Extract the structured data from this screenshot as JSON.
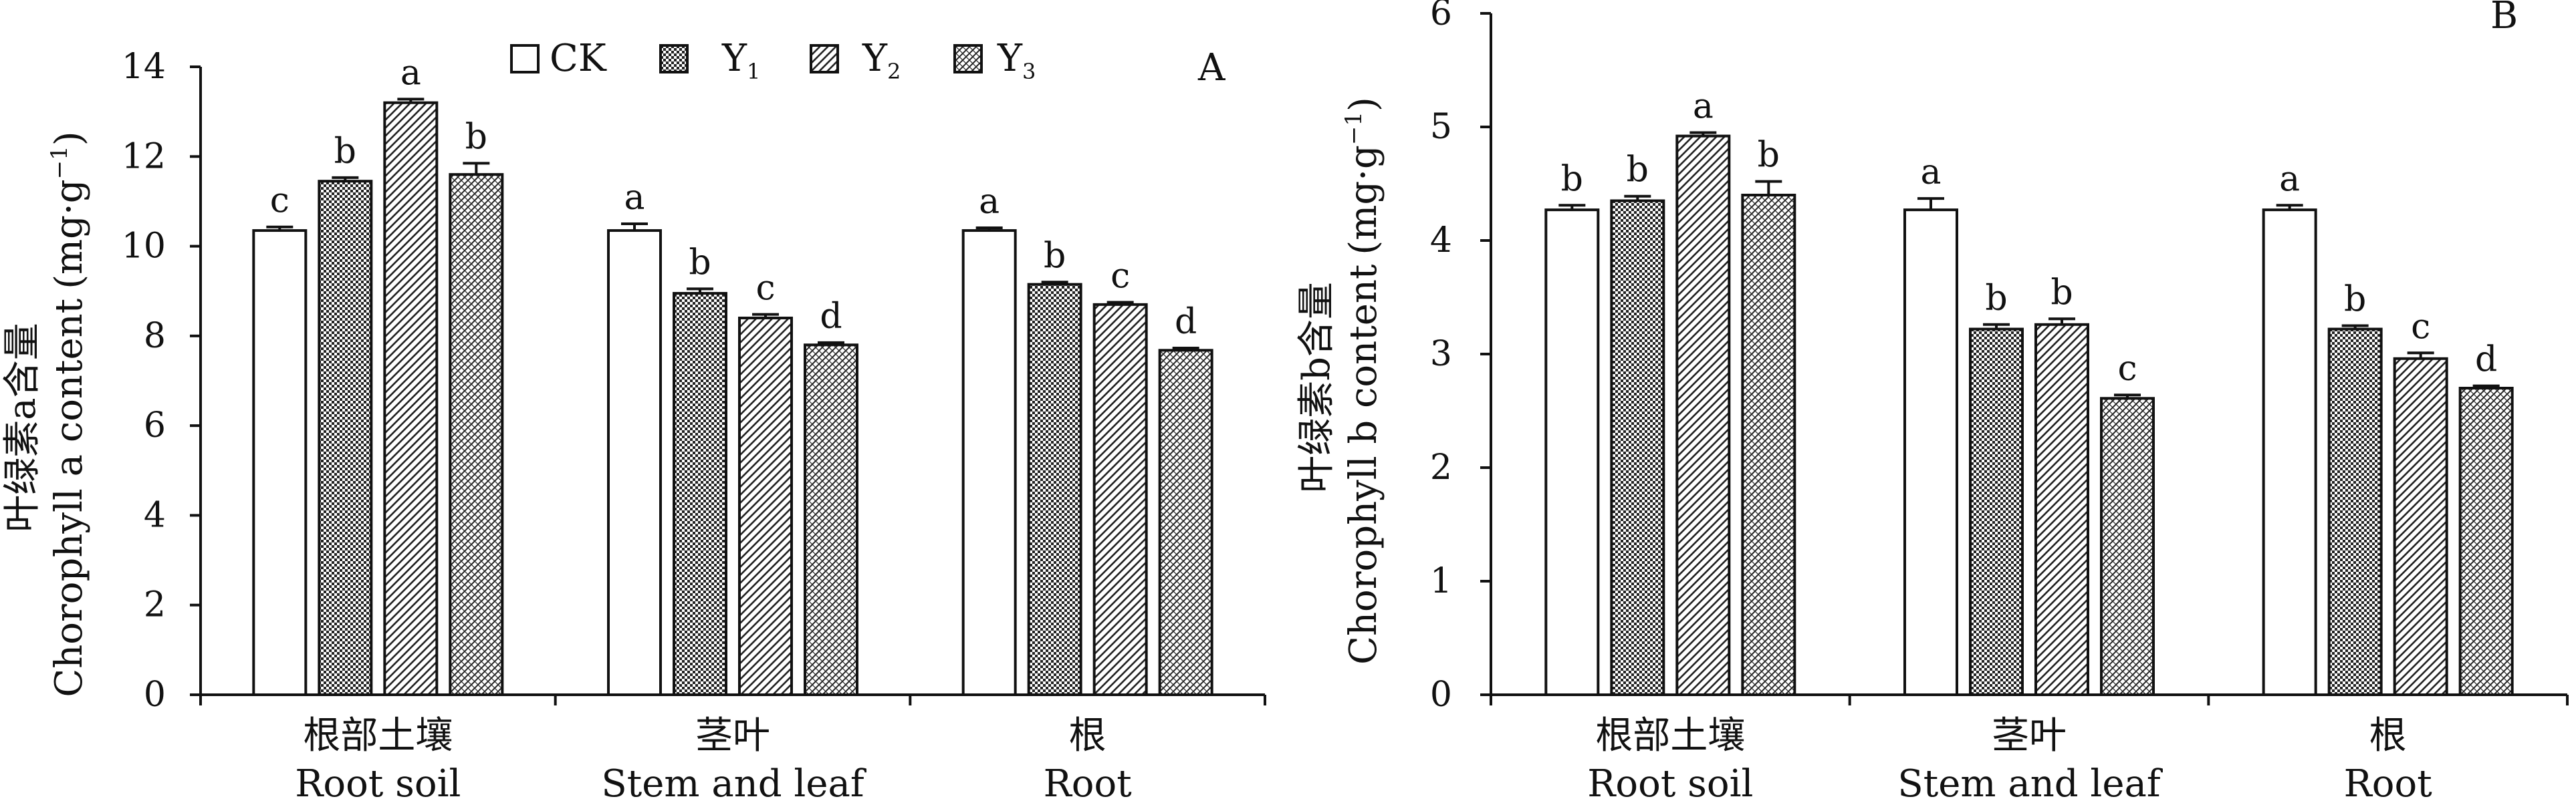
{
  "legend": [
    {
      "name": "CK",
      "sub": "",
      "pattern": "none"
    },
    {
      "name": "Y",
      "sub": "1",
      "pattern": "dense"
    },
    {
      "name": "Y",
      "sub": "2",
      "pattern": "diag"
    },
    {
      "name": "Y",
      "sub": "3",
      "pattern": "diagx"
    }
  ],
  "chart_data": [
    {
      "type": "bar",
      "panel_label": "A",
      "ylabel_cn": "叶绿素a含量",
      "ylabel_en": "Chorophyll a content",
      "yunit_pre": "(mg·g",
      "yunit_sup": "−1",
      "yunit_post": ")",
      "ylim": [
        0,
        14
      ],
      "yticks": [
        0,
        2,
        4,
        6,
        8,
        10,
        12,
        14
      ],
      "categories": [
        {
          "cn": "根部土壤",
          "en": "Root soil"
        },
        {
          "cn": "茎叶",
          "en": "Stem and leaf"
        },
        {
          "cn": "根",
          "en": "Root"
        }
      ],
      "series": [
        {
          "name": "CK",
          "values": [
            10.35,
            10.35,
            10.35
          ],
          "errors": [
            0.08,
            0.15,
            0.06
          ],
          "sig": [
            "c",
            "a",
            "a"
          ]
        },
        {
          "name": "Y1",
          "values": [
            11.45,
            8.95,
            9.15
          ],
          "errors": [
            0.08,
            0.1,
            0.05
          ],
          "sig": [
            "b",
            "b",
            "b"
          ]
        },
        {
          "name": "Y2",
          "values": [
            13.2,
            8.4,
            8.7
          ],
          "errors": [
            0.08,
            0.08,
            0.05
          ],
          "sig": [
            "a",
            "c",
            "c"
          ]
        },
        {
          "name": "Y3",
          "values": [
            11.6,
            7.8,
            7.68
          ],
          "errors": [
            0.25,
            0.05,
            0.05
          ],
          "sig": [
            "b",
            "d",
            "d"
          ]
        }
      ]
    },
    {
      "type": "bar",
      "panel_label": "B",
      "ylabel_cn": "叶绿素b含量",
      "ylabel_en": "Chorophyll b content",
      "yunit_pre": "(mg·g",
      "yunit_sup": "−1",
      "yunit_post": ")",
      "ylim": [
        0,
        6
      ],
      "yticks": [
        0,
        1,
        2,
        3,
        4,
        5,
        6
      ],
      "categories": [
        {
          "cn": "根部土壤",
          "en": "Root soil"
        },
        {
          "cn": "茎叶",
          "en": "Stem and leaf"
        },
        {
          "cn": "根",
          "en": "Root"
        }
      ],
      "series": [
        {
          "name": "CK",
          "values": [
            4.27,
            4.27,
            4.27
          ],
          "errors": [
            0.04,
            0.1,
            0.04
          ],
          "sig": [
            "b",
            "a",
            "a"
          ]
        },
        {
          "name": "Y1",
          "values": [
            4.35,
            3.22,
            3.22
          ],
          "errors": [
            0.04,
            0.04,
            0.03
          ],
          "sig": [
            "b",
            "b",
            "b"
          ]
        },
        {
          "name": "Y2",
          "values": [
            4.92,
            3.26,
            2.96
          ],
          "errors": [
            0.03,
            0.05,
            0.05
          ],
          "sig": [
            "a",
            "b",
            "c"
          ]
        },
        {
          "name": "Y3",
          "values": [
            4.4,
            2.61,
            2.7
          ],
          "errors": [
            0.12,
            0.03,
            0.02
          ],
          "sig": [
            "b",
            "c",
            "d"
          ]
        }
      ]
    }
  ]
}
